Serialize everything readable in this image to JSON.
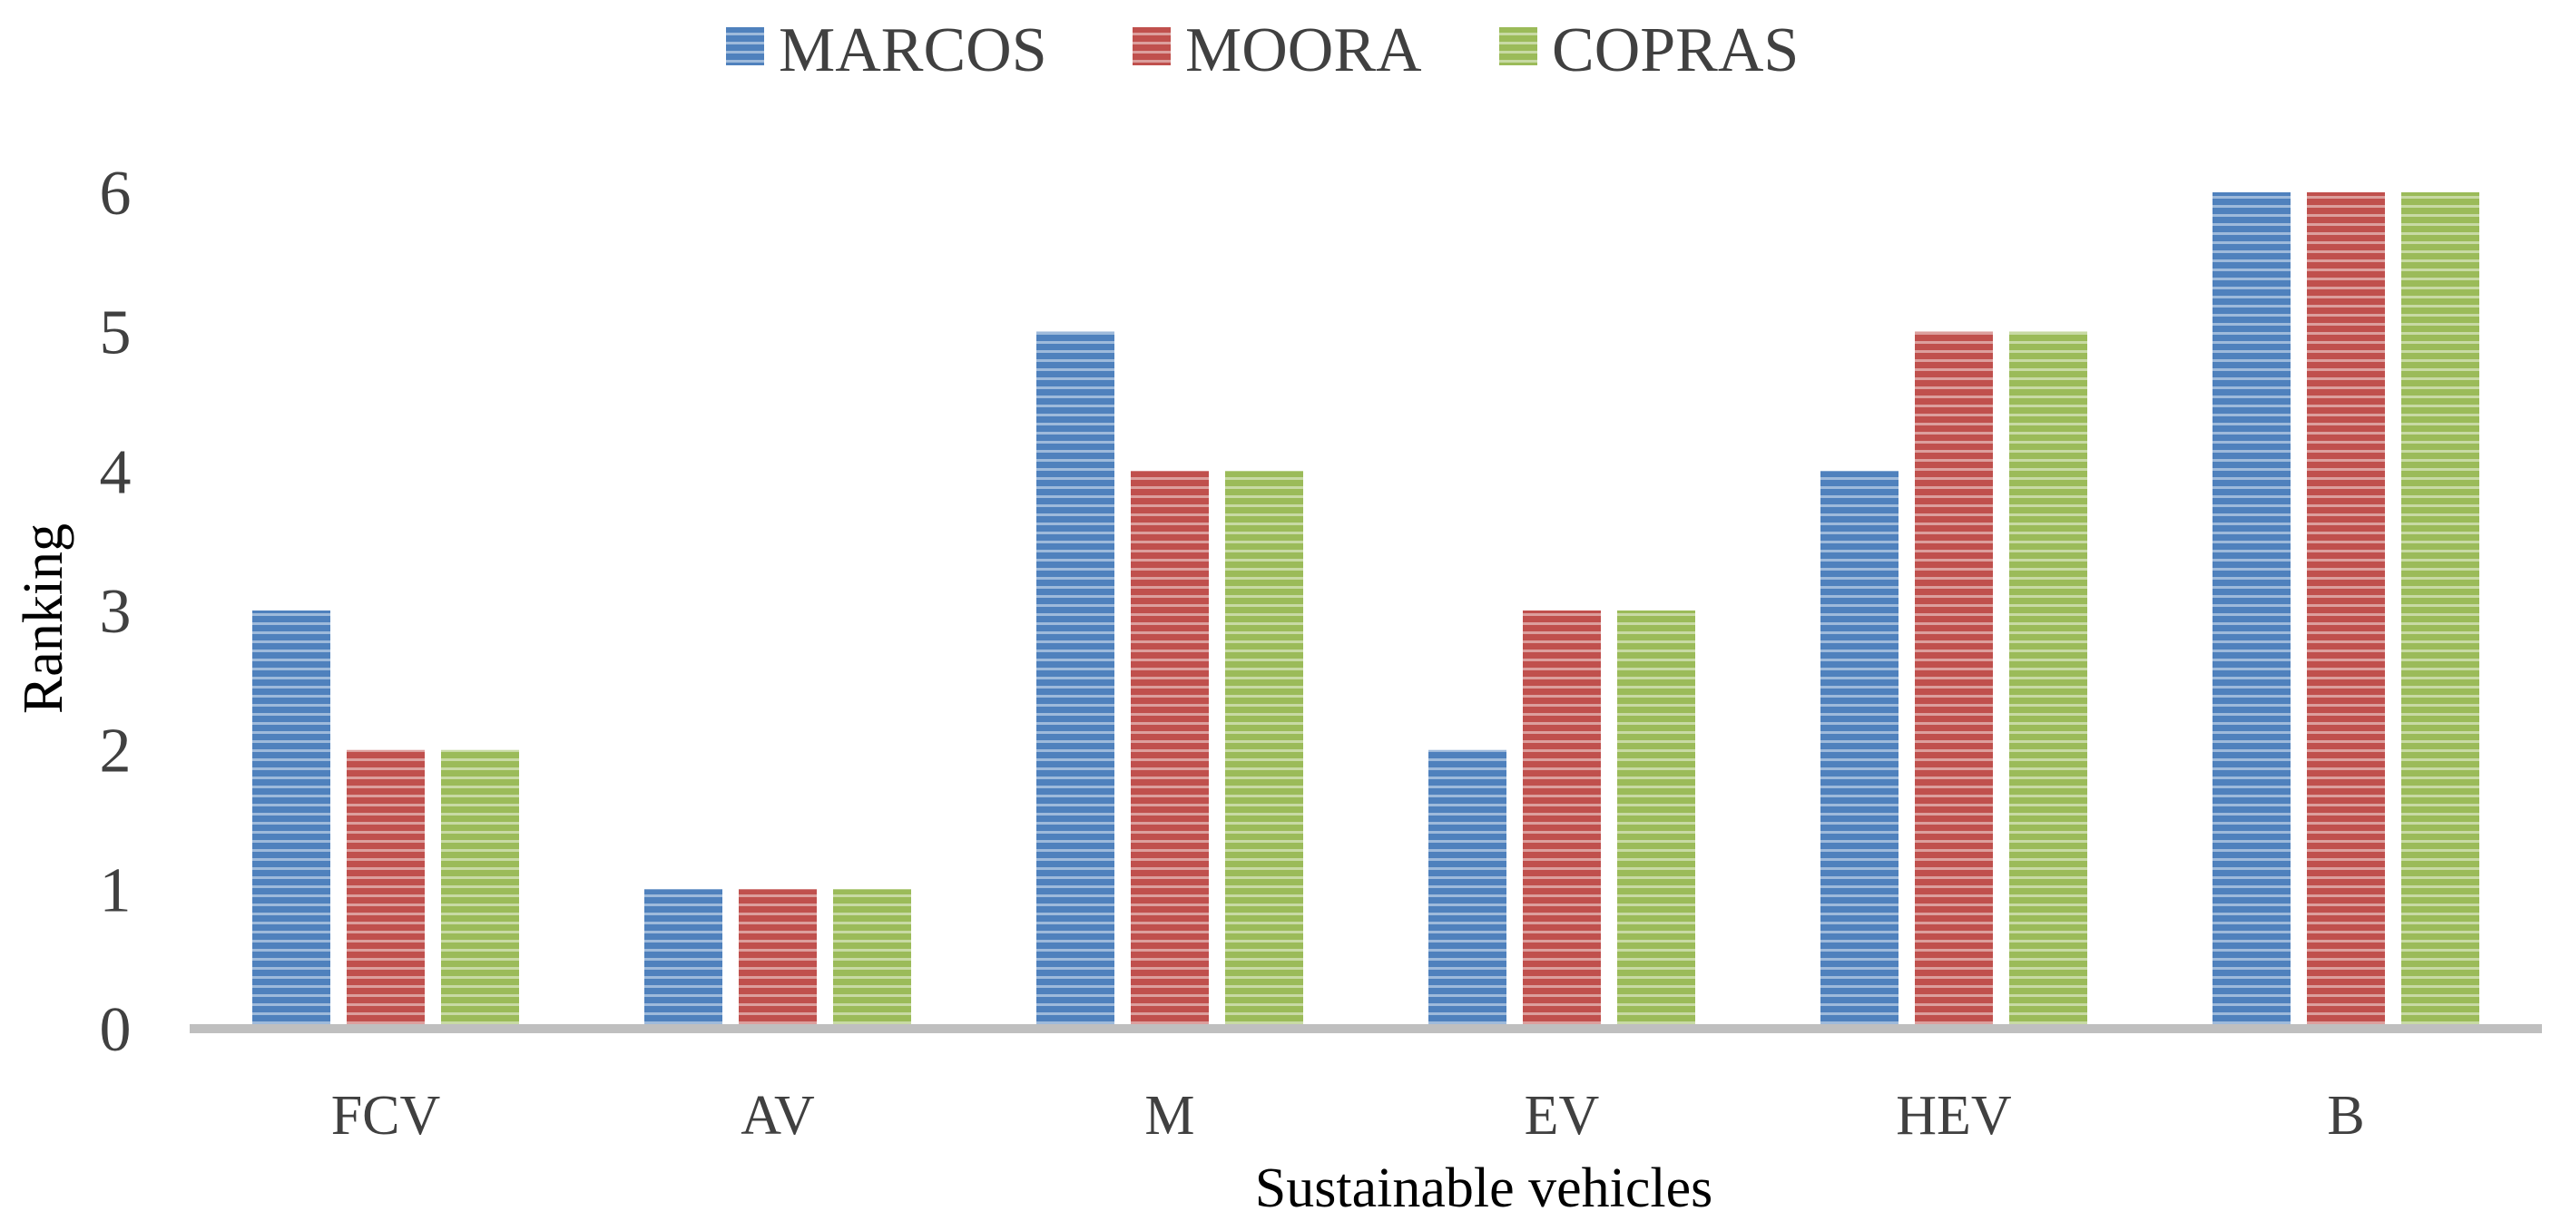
{
  "chart_data": {
    "type": "bar",
    "title": "",
    "xlabel": "Sustainable vehicles",
    "ylabel": "Ranking",
    "categories": [
      "FCV",
      "AV",
      "M",
      "EV",
      "HEV",
      "B"
    ],
    "series": [
      {
        "name": "MARCOS",
        "color": "#4f81bd",
        "values": [
          3,
          1,
          5,
          2,
          4,
          6
        ]
      },
      {
        "name": "MOORA",
        "color": "#c0504d",
        "values": [
          2,
          1,
          4,
          3,
          5,
          6
        ]
      },
      {
        "name": "COPRAS",
        "color": "#9bbb59",
        "values": [
          2,
          1,
          4,
          3,
          5,
          6
        ]
      }
    ],
    "ylim": [
      0,
      6
    ],
    "yticks": [
      "0",
      "1",
      "2",
      "3",
      "4",
      "5",
      "6"
    ],
    "grid": false,
    "legend_position": "top-center",
    "bar_pattern": "horizontal-stripes"
  }
}
